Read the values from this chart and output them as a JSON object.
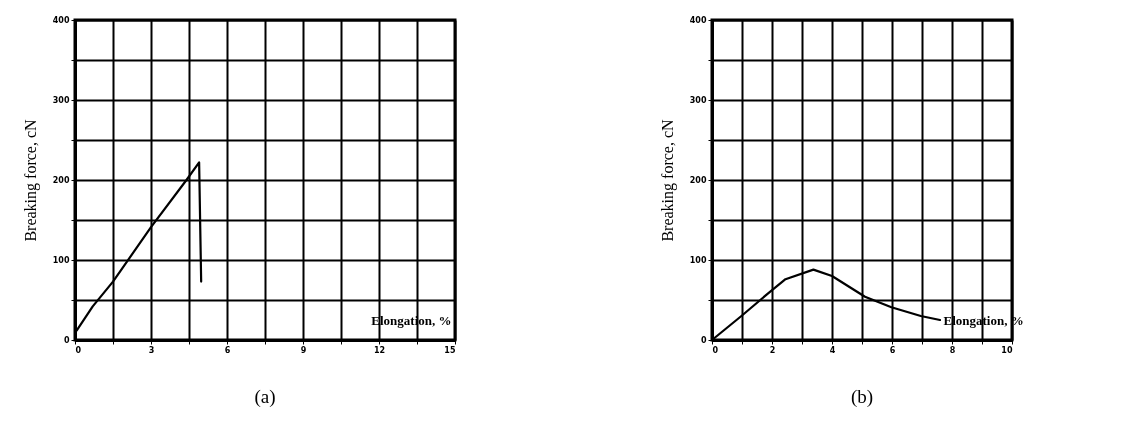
{
  "chart_data": [
    {
      "type": "line",
      "title": "(a)",
      "xlabel": "Elongation, %",
      "ylabel": "Breaking force, cN",
      "xlim": [
        0,
        15
      ],
      "ylim": [
        0,
        400
      ],
      "xticks": [
        0,
        {
          "value": 1.5,
          "label": null
        },
        3,
        {
          "value": 4.5,
          "label": null
        },
        6,
        {
          "value": 7.5,
          "label": null
        },
        9,
        {
          "value": 10.5,
          "label": null
        },
        12,
        {
          "value": 13.5,
          "label": null
        },
        15
      ],
      "yticks": [
        0,
        {
          "value": 50,
          "label": null
        },
        100,
        {
          "value": 150,
          "label": null
        },
        200,
        {
          "value": 250,
          "label": null
        },
        300,
        {
          "value": 350,
          "label": null
        },
        400
      ],
      "grid": true,
      "series": [
        {
          "color": "#000000",
          "x": [
            0.07,
            0.7,
            1.5,
            3,
            4.4,
            4.9,
            4.98
          ],
          "values": [
            12,
            42,
            73,
            141,
            200,
            222,
            73
          ]
        }
      ]
    },
    {
      "type": "line",
      "title": "(b)",
      "xlabel": "Elongation, %",
      "ylabel": "Breaking force, cN",
      "xlim": [
        0,
        10
      ],
      "ylim": [
        0,
        400
      ],
      "xticks": [
        0,
        {
          "value": 1,
          "label": null
        },
        2,
        {
          "value": 3,
          "label": null
        },
        4,
        {
          "value": 5,
          "label": null
        },
        6,
        {
          "value": 7,
          "label": null
        },
        8,
        {
          "value": 9,
          "label": null
        },
        10
      ],
      "yticks": [
        0,
        {
          "value": 50,
          "label": null
        },
        100,
        {
          "value": 150,
          "label": null
        },
        200,
        {
          "value": 250,
          "label": null
        },
        300,
        {
          "value": 350,
          "label": null
        },
        400
      ],
      "grid": true,
      "series": [
        {
          "color": "#000000",
          "x": [
            0,
            0.98,
            1.86,
            2.45,
            3.38,
            4.0,
            5.1,
            5.98,
            6.96,
            7.6
          ],
          "values": [
            0,
            30,
            58,
            76,
            88,
            80,
            54,
            41,
            30,
            25
          ]
        }
      ]
    }
  ]
}
